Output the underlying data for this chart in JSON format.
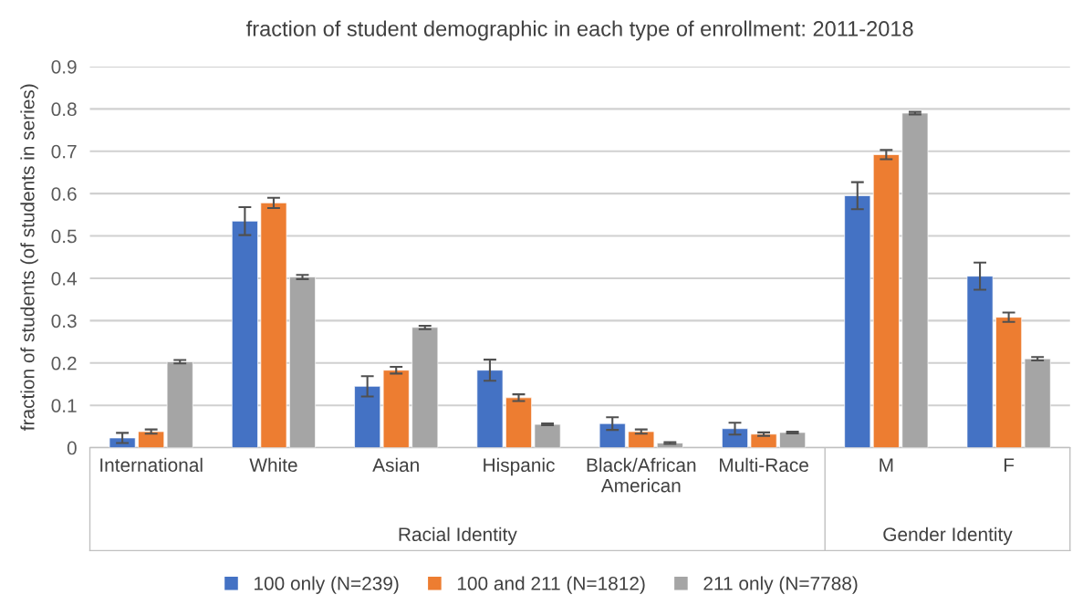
{
  "chart_data": {
    "type": "bar",
    "title": "fraction of student demographic in each type of enrollment: 2011-2018",
    "ylabel": "fraction of students (of students in series)",
    "categories": [
      "International",
      "White",
      "Asian",
      "Hispanic",
      "Black/African\nAmerican",
      "Multi-Race",
      "M",
      "F"
    ],
    "series": [
      {
        "name": "100 only (N=239)",
        "color": "#4472c4",
        "values": [
          0.023,
          0.535,
          0.145,
          0.183,
          0.057,
          0.045,
          0.595,
          0.405
        ],
        "errors": [
          0.012,
          0.033,
          0.024,
          0.025,
          0.015,
          0.014,
          0.032,
          0.032
        ]
      },
      {
        "name": "100 and 211 (N=1812)",
        "color": "#ed7d31",
        "values": [
          0.038,
          0.578,
          0.183,
          0.118,
          0.038,
          0.032,
          0.692,
          0.308
        ],
        "errors": [
          0.005,
          0.012,
          0.008,
          0.008,
          0.005,
          0.004,
          0.011,
          0.011
        ]
      },
      {
        "name": "211 only (N=7788)",
        "color": "#a5a5a5",
        "values": [
          0.203,
          0.403,
          0.284,
          0.055,
          0.011,
          0.036,
          0.79,
          0.21
        ],
        "errors": [
          0.004,
          0.005,
          0.004,
          0.002,
          0.002,
          0.002,
          0.003,
          0.004
        ]
      }
    ],
    "annotations": [
      "Racial Identity",
      "Gender Identity"
    ],
    "ylim": [
      0,
      0.9
    ],
    "yticks": [
      0,
      0.1,
      0.2,
      0.3,
      0.4,
      0.5,
      0.6,
      0.7,
      0.8,
      0.9
    ],
    "grid": "y",
    "legend": "bottom"
  }
}
